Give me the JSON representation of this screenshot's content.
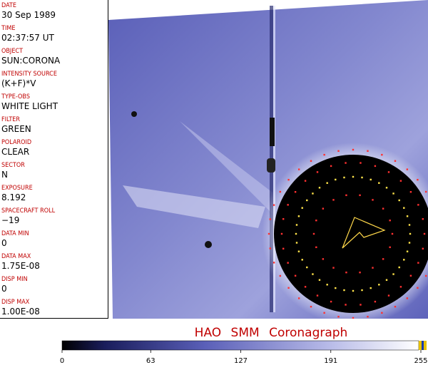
{
  "fields": [
    {
      "label": "DATE",
      "value": "30 Sep 1989"
    },
    {
      "label": "TIME",
      "value": "02:37:57 UT"
    },
    {
      "label": "OBJECT",
      "value": "SUN:CORONA"
    },
    {
      "label": "INTENSITY SOURCE",
      "value": "(K+F)*V"
    },
    {
      "label": "TYPE-OBS",
      "value": "WHITE LIGHT"
    },
    {
      "label": "FILTER",
      "value": "GREEN"
    },
    {
      "label": "POLAROID",
      "value": "CLEAR"
    },
    {
      "label": "SECTOR",
      "value": "N"
    },
    {
      "label": "EXPOSURE",
      "value": "8.192"
    },
    {
      "label": "SPACECRAFT ROLL",
      "value": "−19"
    },
    {
      "label": "DATA MIN",
      "value": "0"
    },
    {
      "label": "DATA MAX",
      "value": "1.75E-08"
    },
    {
      "label": "DISP MIN",
      "value": "0"
    },
    {
      "label": "DISP MAX",
      "value": "1.00E-08"
    }
  ],
  "title": "HAO SMM Coronagraph",
  "colorbar": {
    "range": [
      0,
      255
    ],
    "ticks": [
      0,
      63,
      127,
      191,
      255
    ]
  }
}
